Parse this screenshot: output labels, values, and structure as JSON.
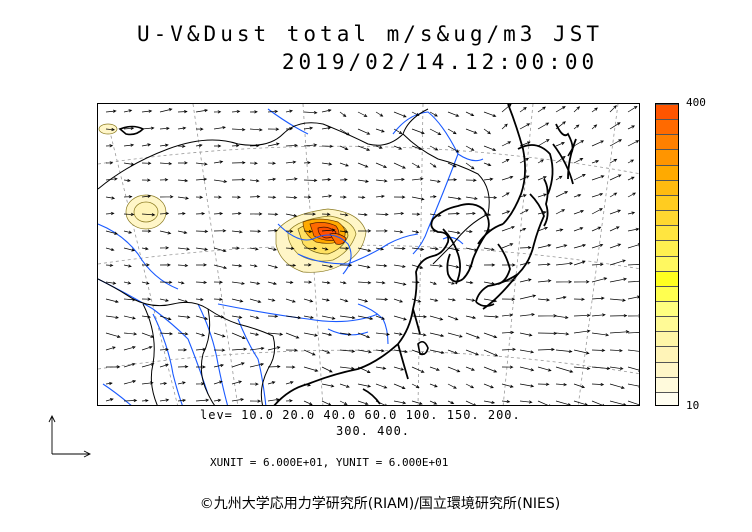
{
  "title": {
    "line1": "U-V&Dust total m/s&ug/m3 JST",
    "line2": "2019/02/14.12:00:00"
  },
  "colorbar": {
    "top_label": "400",
    "bottom_label": "10",
    "colors": [
      "#ff5500",
      "#ff6a00",
      "#ff8000",
      "#ff9500",
      "#ffaa00",
      "#ffbb10",
      "#ffcc20",
      "#ffd830",
      "#ffe540",
      "#fff050",
      "#fff860",
      "#ffff20",
      "#ffff50",
      "#ffff80",
      "#fffa96",
      "#fff6a8",
      "#fff4b8",
      "#fff6c8",
      "#fffadc",
      "#fffdf0"
    ]
  },
  "levels": {
    "line1": "lev= 10.0 20.0 40.0 60.0 100. 150. 200.",
    "line2": "300. 400."
  },
  "units": "XUNIT = 6.000E+01, YUNIT = 6.000E+01",
  "copyright": "©九州大学応用力学研究所(RIAM)/国立環境研究所(NIES)"
}
